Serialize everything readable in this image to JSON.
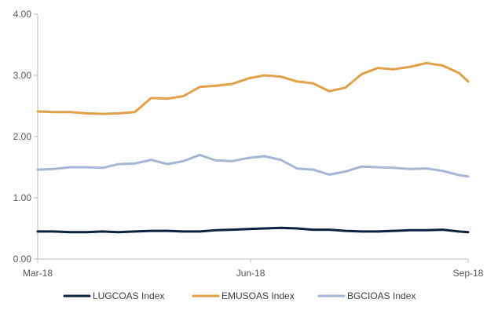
{
  "chart_data": {
    "type": "line",
    "title": "",
    "xlabel": "",
    "ylabel": "",
    "ylim": [
      0,
      4
    ],
    "y_ticks": [
      "0.00",
      "1.00",
      "2.00",
      "3.00",
      "4.00"
    ],
    "x_ticks": [
      "Mar-18",
      "Jun-18",
      "Sep-18"
    ],
    "grid": false,
    "legend_position": "bottom",
    "x": [
      "2018-03-01",
      "2018-03-08",
      "2018-03-15",
      "2018-03-22",
      "2018-03-29",
      "2018-04-05",
      "2018-04-12",
      "2018-04-19",
      "2018-04-26",
      "2018-05-03",
      "2018-05-10",
      "2018-05-17",
      "2018-05-24",
      "2018-05-31",
      "2018-06-07",
      "2018-06-14",
      "2018-06-21",
      "2018-06-28",
      "2018-07-05",
      "2018-07-12",
      "2018-07-19",
      "2018-07-26",
      "2018-08-02",
      "2018-08-09",
      "2018-08-16",
      "2018-08-23",
      "2018-08-30",
      "2018-09-03"
    ],
    "series": [
      {
        "name": "LUGCOAS Index",
        "color": "#0d2240",
        "values": [
          0.45,
          0.45,
          0.44,
          0.44,
          0.45,
          0.44,
          0.45,
          0.46,
          0.46,
          0.45,
          0.45,
          0.47,
          0.48,
          0.49,
          0.5,
          0.51,
          0.5,
          0.48,
          0.48,
          0.46,
          0.45,
          0.45,
          0.46,
          0.47,
          0.47,
          0.48,
          0.45,
          0.44
        ]
      },
      {
        "name": "EMUSOAS Index",
        "color": "#e0a14a",
        "values": [
          2.41,
          2.4,
          2.4,
          2.38,
          2.37,
          2.38,
          2.4,
          2.63,
          2.62,
          2.66,
          2.81,
          2.83,
          2.86,
          2.95,
          3.0,
          2.98,
          2.9,
          2.87,
          2.74,
          2.8,
          3.02,
          3.12,
          3.1,
          3.14,
          3.2,
          3.16,
          3.04,
          2.9
        ]
      },
      {
        "name": "BGCIOAS Index",
        "color": "#a6b6d4",
        "values": [
          1.46,
          1.47,
          1.5,
          1.5,
          1.49,
          1.55,
          1.56,
          1.62,
          1.55,
          1.6,
          1.7,
          1.61,
          1.6,
          1.65,
          1.68,
          1.62,
          1.48,
          1.46,
          1.38,
          1.43,
          1.51,
          1.5,
          1.49,
          1.47,
          1.48,
          1.44,
          1.37,
          1.35
        ]
      }
    ]
  }
}
